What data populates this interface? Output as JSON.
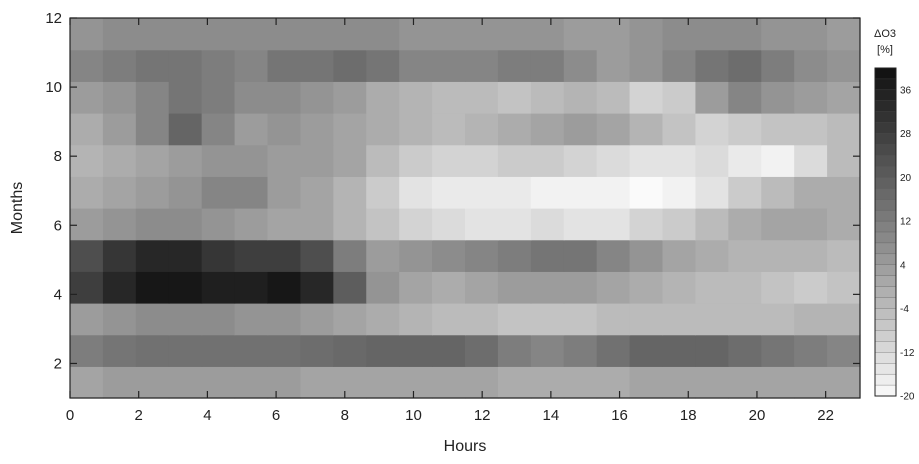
{
  "chart_data": {
    "type": "heatmap",
    "title": "",
    "xlabel": "Hours",
    "ylabel": "Months",
    "xlim": [
      0,
      23
    ],
    "ylim": [
      1,
      12
    ],
    "x_ticks": [
      "0",
      "2",
      "4",
      "6",
      "8",
      "10",
      "12",
      "14",
      "16",
      "18",
      "20",
      "22"
    ],
    "y_ticks": [
      "2",
      "4",
      "6",
      "8",
      "10",
      "12"
    ],
    "colorbar": {
      "label_line1": "ΔO3",
      "label_line2": "[%]",
      "ticks": [
        "36",
        "28",
        "20",
        "12",
        "4",
        "-4",
        "-12",
        "-20"
      ],
      "range": [
        -20,
        40
      ],
      "colormap": "grayscale (white = low, black = high)"
    },
    "x": [
      0,
      1,
      2,
      3,
      4,
      5,
      6,
      7,
      8,
      9,
      10,
      11,
      12,
      13,
      14,
      15,
      16,
      17,
      18,
      19,
      20,
      21,
      22,
      23
    ],
    "y": [
      1,
      2,
      3,
      4,
      5,
      6,
      7,
      8,
      9,
      10,
      11,
      12
    ],
    "z": [
      [
        2,
        4,
        4,
        4,
        4,
        4,
        4,
        2,
        2,
        2,
        2,
        2,
        2,
        0,
        0,
        0,
        0,
        2,
        2,
        2,
        2,
        2,
        2,
        2
      ],
      [
        12,
        14,
        15,
        15,
        15,
        15,
        15,
        16,
        17,
        18,
        18,
        18,
        16,
        12,
        10,
        12,
        15,
        18,
        18,
        18,
        16,
        14,
        12,
        10
      ],
      [
        4,
        6,
        8,
        8,
        8,
        6,
        6,
        4,
        2,
        0,
        -2,
        -4,
        -4,
        -6,
        -6,
        -6,
        -4,
        -4,
        -4,
        -4,
        -4,
        -4,
        -2,
        -2
      ],
      [
        28,
        34,
        38,
        38,
        36,
        36,
        38,
        34,
        20,
        6,
        2,
        0,
        2,
        4,
        4,
        4,
        2,
        0,
        -2,
        -4,
        -4,
        -6,
        -8,
        -6
      ],
      [
        24,
        30,
        34,
        34,
        30,
        28,
        28,
        24,
        12,
        4,
        6,
        8,
        10,
        12,
        14,
        14,
        10,
        6,
        2,
        0,
        -2,
        -2,
        -2,
        -4
      ],
      [
        4,
        6,
        8,
        8,
        6,
        4,
        2,
        2,
        -2,
        -6,
        -10,
        -12,
        -14,
        -14,
        -12,
        -14,
        -14,
        -10,
        -8,
        -4,
        0,
        2,
        2,
        0
      ],
      [
        0,
        2,
        4,
        6,
        10,
        10,
        4,
        2,
        -2,
        -8,
        -14,
        -16,
        -16,
        -16,
        -18,
        -18,
        -18,
        -20,
        -18,
        -14,
        -8,
        -4,
        0,
        0
      ],
      [
        -2,
        0,
        2,
        4,
        6,
        6,
        4,
        4,
        2,
        -4,
        -8,
        -10,
        -10,
        -8,
        -8,
        -10,
        -12,
        -14,
        -14,
        -12,
        -16,
        -18,
        -12,
        -4
      ],
      [
        0,
        4,
        10,
        18,
        10,
        4,
        6,
        4,
        2,
        0,
        -2,
        -4,
        -2,
        0,
        2,
        4,
        2,
        -2,
        -6,
        -10,
        -8,
        -6,
        -6,
        -4
      ],
      [
        4,
        6,
        10,
        14,
        12,
        8,
        8,
        6,
        4,
        0,
        -2,
        -4,
        -4,
        -6,
        -4,
        -2,
        -4,
        -10,
        -8,
        4,
        10,
        6,
        4,
        2
      ],
      [
        10,
        12,
        14,
        14,
        12,
        10,
        14,
        14,
        16,
        14,
        10,
        10,
        10,
        12,
        12,
        8,
        4,
        6,
        10,
        14,
        16,
        12,
        8,
        6
      ],
      [
        6,
        8,
        8,
        8,
        8,
        8,
        8,
        8,
        8,
        8,
        6,
        6,
        6,
        6,
        6,
        4,
        4,
        6,
        8,
        8,
        8,
        6,
        6,
        4
      ]
    ]
  }
}
